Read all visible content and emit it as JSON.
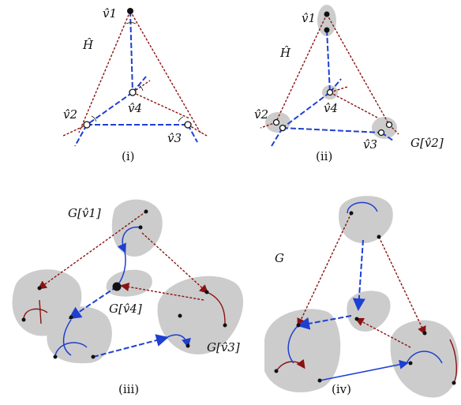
{
  "panels": {
    "i": {
      "caption": "(i)",
      "graph_label": "Ĥ",
      "vertices": [
        "v̂1",
        "v̂2",
        "v̂3",
        "v̂4"
      ]
    },
    "ii": {
      "caption": "(ii)",
      "graph_label": "Ĥ",
      "vertices": [
        "v̂1",
        "v̂2",
        "v̂3",
        "v̂4"
      ],
      "blob_label": "G[v̂2]"
    },
    "iii": {
      "caption": "(iii)",
      "blob_labels": [
        "G[v̂1]",
        "G[v̂4]",
        "G[v̂3]"
      ]
    },
    "iv": {
      "caption": "(iv)",
      "graph_label": "G"
    }
  },
  "colors": {
    "red_edge": "#8b1212",
    "blue_edge": "#1f3fd0",
    "blob_fill": "#cccccc"
  }
}
